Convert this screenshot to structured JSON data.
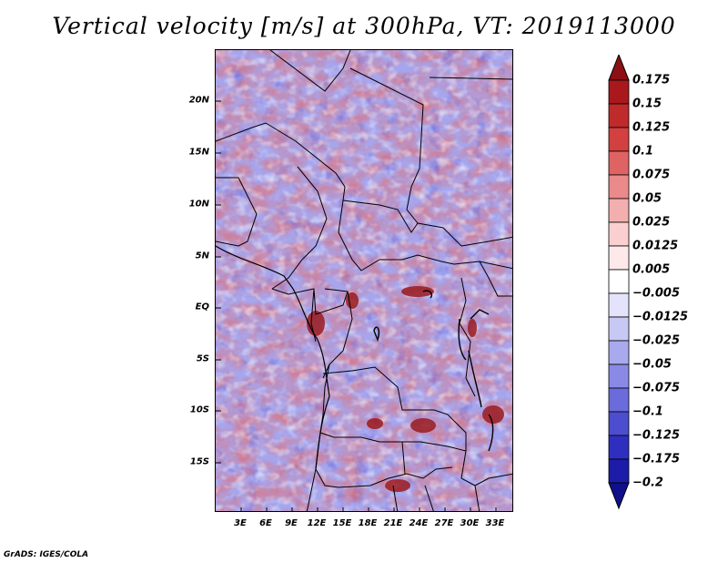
{
  "title": "Vertical velocity [m/s] at 300hPa, VT: 2019113000",
  "map": {
    "region": "Central and Southern Africa",
    "lat_labels": [
      "20N",
      "15N",
      "10N",
      "5N",
      "EQ",
      "5S",
      "10S",
      "15S"
    ],
    "lon_labels": [
      "3E",
      "6E",
      "9E",
      "12E",
      "15E",
      "18E",
      "21E",
      "24E",
      "27E",
      "30E",
      "33E"
    ]
  },
  "colorbar": {
    "labels": [
      "0.175",
      "0.15",
      "0.125",
      "0.1",
      "0.075",
      "0.05",
      "0.025",
      "0.0125",
      "0.005",
      "−0.005",
      "−0.0125",
      "−0.025",
      "−0.05",
      "−0.075",
      "−0.1",
      "−0.125",
      "−0.175",
      "−0.2"
    ],
    "colors": [
      "#8b0f14",
      "#a8181c",
      "#bf2a2a",
      "#d34040",
      "#e06363",
      "#ea8a8a",
      "#f3aeae",
      "#f9cfcf",
      "#fde9e9",
      "#ffffff",
      "#e3e3fb",
      "#c8c8f4",
      "#a9a9ee",
      "#8a8ae6",
      "#6b6bdc",
      "#4d4dcf",
      "#2f2fbf",
      "#1c1ca8",
      "#10108a"
    ]
  },
  "credit": "GrADS: IGES/COLA"
}
